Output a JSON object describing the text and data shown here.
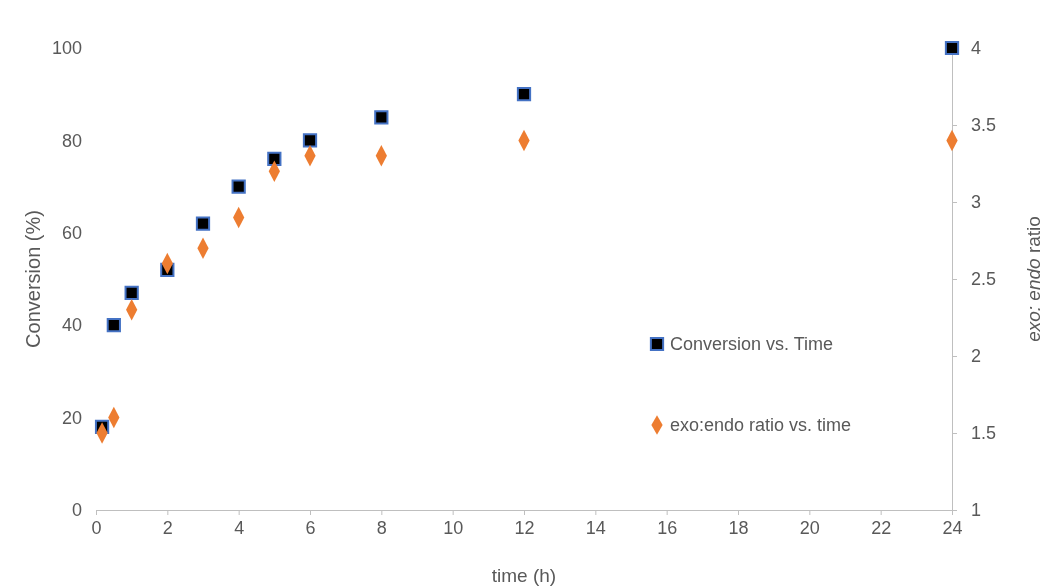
{
  "chart_data": {
    "type": "scatter",
    "xlabel": "time (h)",
    "ylabel": "Conversion (%)",
    "y2label": "exo: endo ratio",
    "xlim": [
      0,
      24
    ],
    "xticks": [
      0,
      2,
      4,
      6,
      8,
      10,
      12,
      14,
      16,
      18,
      20,
      22,
      24
    ],
    "ylim": [
      0,
      100
    ],
    "yticks": [
      0,
      20,
      40,
      60,
      80,
      100
    ],
    "y2lim": [
      1,
      4
    ],
    "y2ticks": [
      1,
      1.5,
      2,
      2.5,
      3,
      3.5,
      4
    ],
    "grid": false,
    "legend": "right",
    "series": [
      {
        "name": "Conversion vs. Time",
        "color": "#000000",
        "marker": "square",
        "x": [
          0.17,
          0.5,
          1,
          2,
          3,
          4,
          5,
          6,
          8,
          12,
          24
        ],
        "values": [
          18,
          40,
          47,
          52,
          62,
          70,
          76,
          80,
          85,
          90,
          100
        ]
      },
      {
        "name": "exo:endo ratio vs. time",
        "color": "#ed7d31",
        "marker": "diamond",
        "axis": "y2",
        "x": [
          0.17,
          0.5,
          1,
          2,
          3,
          4,
          5,
          6,
          8,
          12,
          24
        ],
        "values": [
          1.5,
          1.6,
          2.3,
          2.6,
          2.7,
          2.9,
          3.2,
          3.3,
          3.3,
          3.4,
          3.4
        ]
      }
    ]
  }
}
